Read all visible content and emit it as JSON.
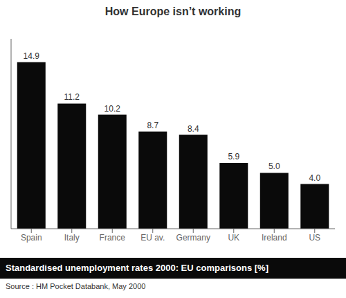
{
  "chart_data": {
    "type": "bar",
    "title": "How Europe isn’t working",
    "subtitle": "Standardised unemployment rates 2000: EU comparisons [%]",
    "annotations": [
      "Source : HM Pocket Databank, May 2000"
    ],
    "categories": [
      "Spain",
      "Italy",
      "France",
      "EU av.",
      "Germany",
      "UK",
      "Ireland",
      "US"
    ],
    "values": [
      14.9,
      11.2,
      10.2,
      8.7,
      8.4,
      5.9,
      5.0,
      4.0
    ],
    "value_labels": [
      "14.9",
      "11.2",
      "10.2",
      "8.7",
      "8.4",
      "5.9",
      "5.0",
      "4.0"
    ],
    "color": "#0a0a0a",
    "ylim": [
      0,
      17.0
    ],
    "grid": false,
    "data_labels": true,
    "tick_labels": "x"
  }
}
